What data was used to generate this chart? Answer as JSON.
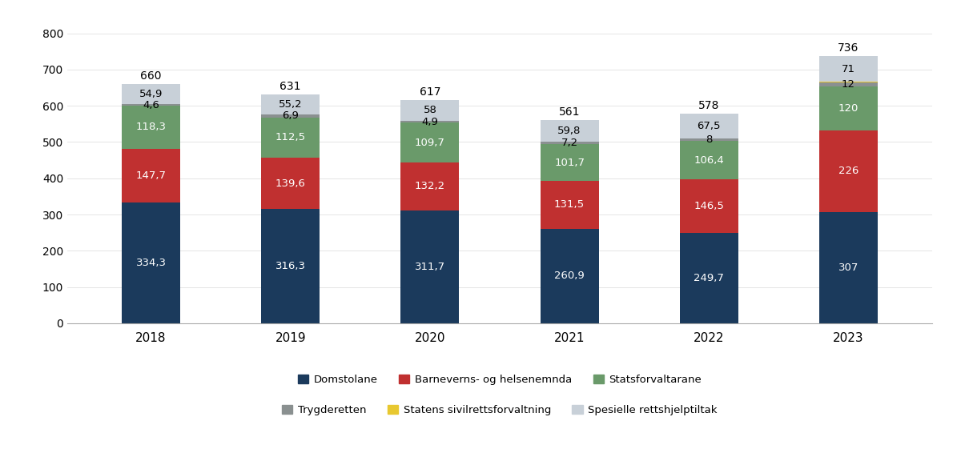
{
  "years": [
    "2018",
    "2019",
    "2020",
    "2021",
    "2022",
    "2023"
  ],
  "totals": [
    660,
    631,
    617,
    561,
    578,
    736
  ],
  "series": {
    "Domstolane": {
      "values": [
        334.3,
        316.3,
        311.7,
        260.9,
        249.7,
        307
      ],
      "color": "#1b3a5c"
    },
    "Barneverns- og helsenemnda": {
      "values": [
        147.7,
        139.6,
        132.2,
        131.5,
        146.5,
        226
      ],
      "color": "#c03030"
    },
    "Statsforvaltarane": {
      "values": [
        118.3,
        112.5,
        109.7,
        101.7,
        106.4,
        120
      ],
      "color": "#6a9a6a"
    },
    "Trygderetten": {
      "values": [
        4.6,
        6.9,
        4.9,
        7.2,
        8.0,
        12
      ],
      "color": "#8a9090"
    },
    "Statens sivilrettsforvaltning": {
      "values": [
        0.2,
        0.5,
        0.5,
        0.6,
        0.4,
        1
      ],
      "color": "#e8c830"
    },
    "Spesielle rettshjelptiltak": {
      "values": [
        54.9,
        55.2,
        58.0,
        59.8,
        67.5,
        71
      ],
      "color": "#c8d0d8"
    }
  },
  "series_order": [
    "Domstolane",
    "Barneverns- og helsenemnda",
    "Statsforvaltarane",
    "Trygderetten",
    "Statens sivilrettsforvaltning",
    "Spesielle rettshjelptiltak"
  ],
  "legend_row1": [
    "Domstolane",
    "Barneverns- og helsenemnda",
    "Statsforvaltarane"
  ],
  "legend_row2": [
    "Trygderetten",
    "Statens sivilrettsforvaltning",
    "Spesielle rettshjelptiltak"
  ],
  "ylim": [
    0,
    830
  ],
  "yticks": [
    0,
    100,
    200,
    300,
    400,
    500,
    600,
    700,
    800
  ],
  "background_color": "#ffffff",
  "bar_width": 0.42,
  "label_fontsize": 9.5,
  "total_fontsize": 10
}
